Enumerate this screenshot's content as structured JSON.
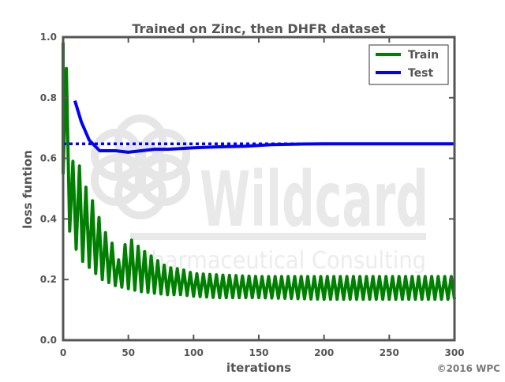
{
  "chart_data": {
    "type": "line",
    "title": "Trained on Zinc, then DHFR dataset",
    "xlabel": "iterations",
    "ylabel": "loss funtion",
    "xlim": [
      0,
      300
    ],
    "ylim": [
      0.0,
      1.0
    ],
    "xticks": [
      "0",
      "50",
      "100",
      "150",
      "200",
      "250",
      "300"
    ],
    "yticks": [
      "0.0",
      "0.2",
      "0.4",
      "0.6",
      "0.8",
      "1.0"
    ],
    "grid": false,
    "legend_position": "top-right",
    "series": [
      {
        "name": "Train",
        "color": "#008000",
        "style": "solid",
        "envelope": {
          "x": [
            0,
            3,
            5,
            10,
            15,
            20,
            25,
            30,
            35,
            40,
            50,
            60,
            70,
            80,
            90,
            100,
            120,
            150,
            200,
            250,
            300
          ],
          "low": [
            0.55,
            0.4,
            0.36,
            0.3,
            0.26,
            0.24,
            0.22,
            0.2,
            0.19,
            0.18,
            0.17,
            0.16,
            0.155,
            0.15,
            0.15,
            0.145,
            0.14,
            0.14,
            0.135,
            0.135,
            0.135
          ],
          "high": [
            0.98,
            0.88,
            0.62,
            0.56,
            0.59,
            0.42,
            0.5,
            0.31,
            0.4,
            0.24,
            0.34,
            0.3,
            0.27,
            0.24,
            0.235,
            0.22,
            0.215,
            0.21,
            0.21,
            0.21,
            0.21
          ]
        },
        "cycle_length": 5
      },
      {
        "name": "Test",
        "color": "#0000ff",
        "style": "solid",
        "x": [
          9,
          14,
          20,
          28,
          40,
          50,
          60,
          70,
          80,
          90,
          100,
          120,
          140,
          160,
          180,
          200,
          220,
          250,
          280,
          300
        ],
        "y": [
          0.79,
          0.72,
          0.66,
          0.625,
          0.625,
          0.62,
          0.625,
          0.63,
          0.63,
          0.632,
          0.635,
          0.638,
          0.64,
          0.645,
          0.647,
          0.648,
          0.648,
          0.648,
          0.648,
          0.648
        ]
      },
      {
        "name": "",
        "color": "#0000ff",
        "style": "dotted",
        "x": [
          0,
          300
        ],
        "y": [
          0.648,
          0.648
        ]
      }
    ],
    "legend": [
      {
        "label": "Train",
        "color": "#008000"
      },
      {
        "label": "Test",
        "color": "#0000ff"
      }
    ]
  },
  "watermark": {
    "brand": "Wildcard",
    "tagline": "Pharmaceutical Consulting"
  },
  "copyright": "©2016 WPC",
  "colors": {
    "axes": "#555555",
    "text": "#555555",
    "watermark": "#ebebeb"
  }
}
